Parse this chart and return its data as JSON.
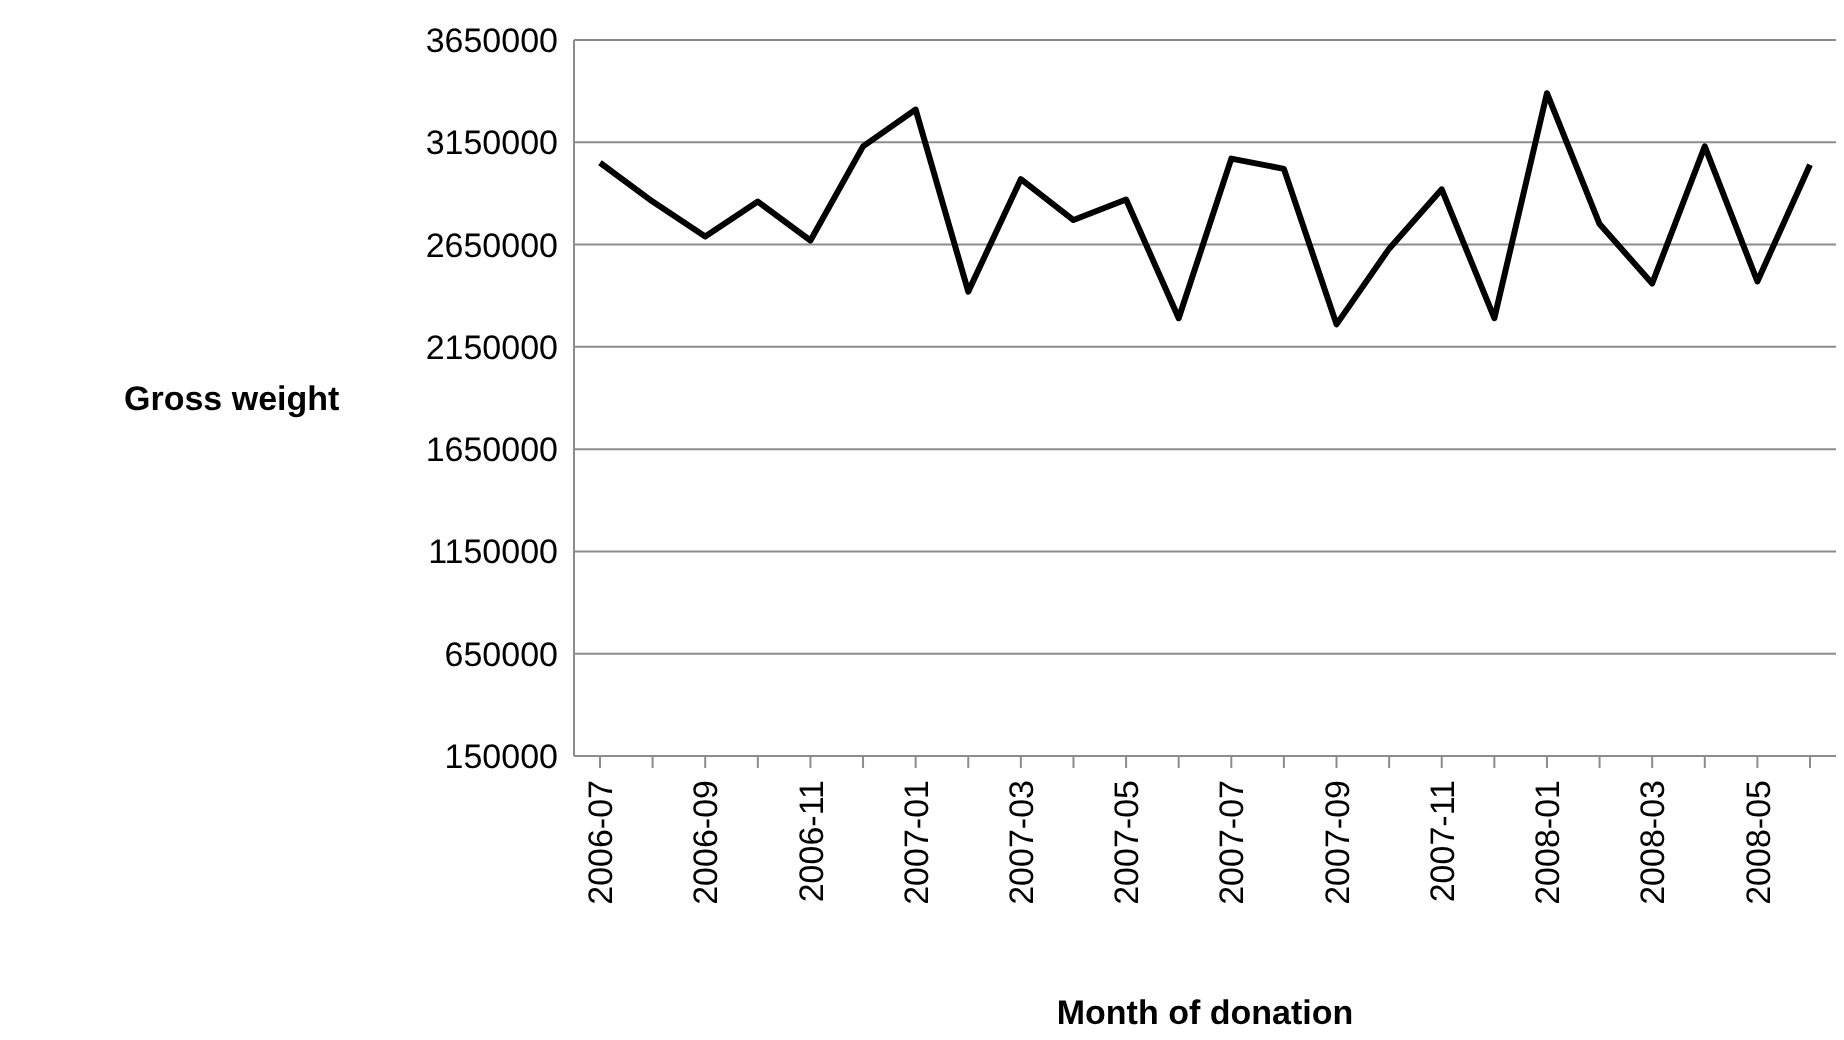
{
  "chart_data": {
    "type": "line",
    "xlabel": "Month of donation",
    "ylabel": "Gross weight",
    "categories": [
      "2006-07",
      null,
      "2006-09",
      null,
      "2006-11",
      null,
      "2007-01",
      null,
      "2007-03",
      null,
      "2007-05",
      null,
      "2007-07",
      null,
      "2007-09",
      null,
      "2007-11",
      null,
      "2008-01",
      null,
      "2008-03",
      null,
      "2008-05",
      null
    ],
    "series": [
      {
        "color": "#000000",
        "values": [
          3050000,
          2860000,
          2690000,
          2860000,
          2670000,
          3130000,
          3310000,
          2420000,
          2970000,
          2770000,
          2870000,
          2290000,
          3070000,
          3020000,
          2260000,
          2630000,
          2920000,
          2290000,
          3390000,
          2750000,
          2460000,
          3130000,
          2470000,
          3040000
        ]
      }
    ],
    "ylim": [
      150000,
      3650000
    ],
    "yticks": [
      150000,
      650000,
      1150000,
      1650000,
      2150000,
      2650000,
      3150000,
      3650000
    ],
    "grid": "y",
    "legend": false,
    "marker": "none",
    "line_style": "solid"
  }
}
